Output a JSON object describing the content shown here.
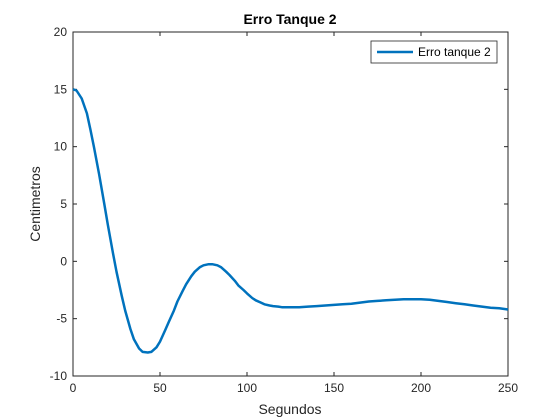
{
  "chart_data": {
    "type": "line",
    "title": "Erro Tanque 2",
    "xlabel": "Segundos",
    "ylabel": "Centimetros",
    "xlim": [
      0,
      250
    ],
    "ylim": [
      -10,
      20
    ],
    "xticks": [
      0,
      50,
      100,
      150,
      200,
      250
    ],
    "yticks": [
      -10,
      -5,
      0,
      5,
      10,
      15,
      20
    ],
    "grid": false,
    "legend_position": "top-right",
    "series": [
      {
        "name": "Erro tanque 2",
        "color": "#0072bd",
        "x": [
          0,
          2,
          5,
          8,
          10,
          12,
          15,
          18,
          20,
          23,
          25,
          28,
          30,
          33,
          35,
          38,
          40,
          43,
          45,
          48,
          50,
          53,
          55,
          58,
          60,
          63,
          65,
          68,
          70,
          73,
          75,
          78,
          80,
          83,
          85,
          88,
          90,
          93,
          95,
          98,
          100,
          103,
          105,
          108,
          110,
          113,
          115,
          118,
          120,
          125,
          130,
          135,
          140,
          145,
          150,
          155,
          160,
          165,
          170,
          175,
          180,
          185,
          190,
          195,
          200,
          205,
          210,
          215,
          220,
          225,
          230,
          235,
          240,
          245,
          250
        ],
        "y": [
          15.0,
          14.9,
          14.2,
          12.9,
          11.5,
          10.0,
          7.6,
          5.0,
          3.2,
          0.7,
          -0.9,
          -3.0,
          -4.3,
          -5.9,
          -6.8,
          -7.6,
          -7.9,
          -7.95,
          -7.9,
          -7.5,
          -7.0,
          -6.0,
          -5.3,
          -4.3,
          -3.5,
          -2.6,
          -2.0,
          -1.3,
          -0.9,
          -0.5,
          -0.35,
          -0.25,
          -0.25,
          -0.35,
          -0.5,
          -0.9,
          -1.2,
          -1.7,
          -2.1,
          -2.5,
          -2.8,
          -3.2,
          -3.4,
          -3.6,
          -3.75,
          -3.85,
          -3.9,
          -3.95,
          -4.0,
          -4.0,
          -4.0,
          -3.95,
          -3.9,
          -3.85,
          -3.8,
          -3.75,
          -3.7,
          -3.6,
          -3.5,
          -3.45,
          -3.4,
          -3.35,
          -3.3,
          -3.3,
          -3.3,
          -3.35,
          -3.45,
          -3.55,
          -3.65,
          -3.75,
          -3.85,
          -3.95,
          -4.05,
          -4.1,
          -4.2
        ]
      }
    ]
  }
}
